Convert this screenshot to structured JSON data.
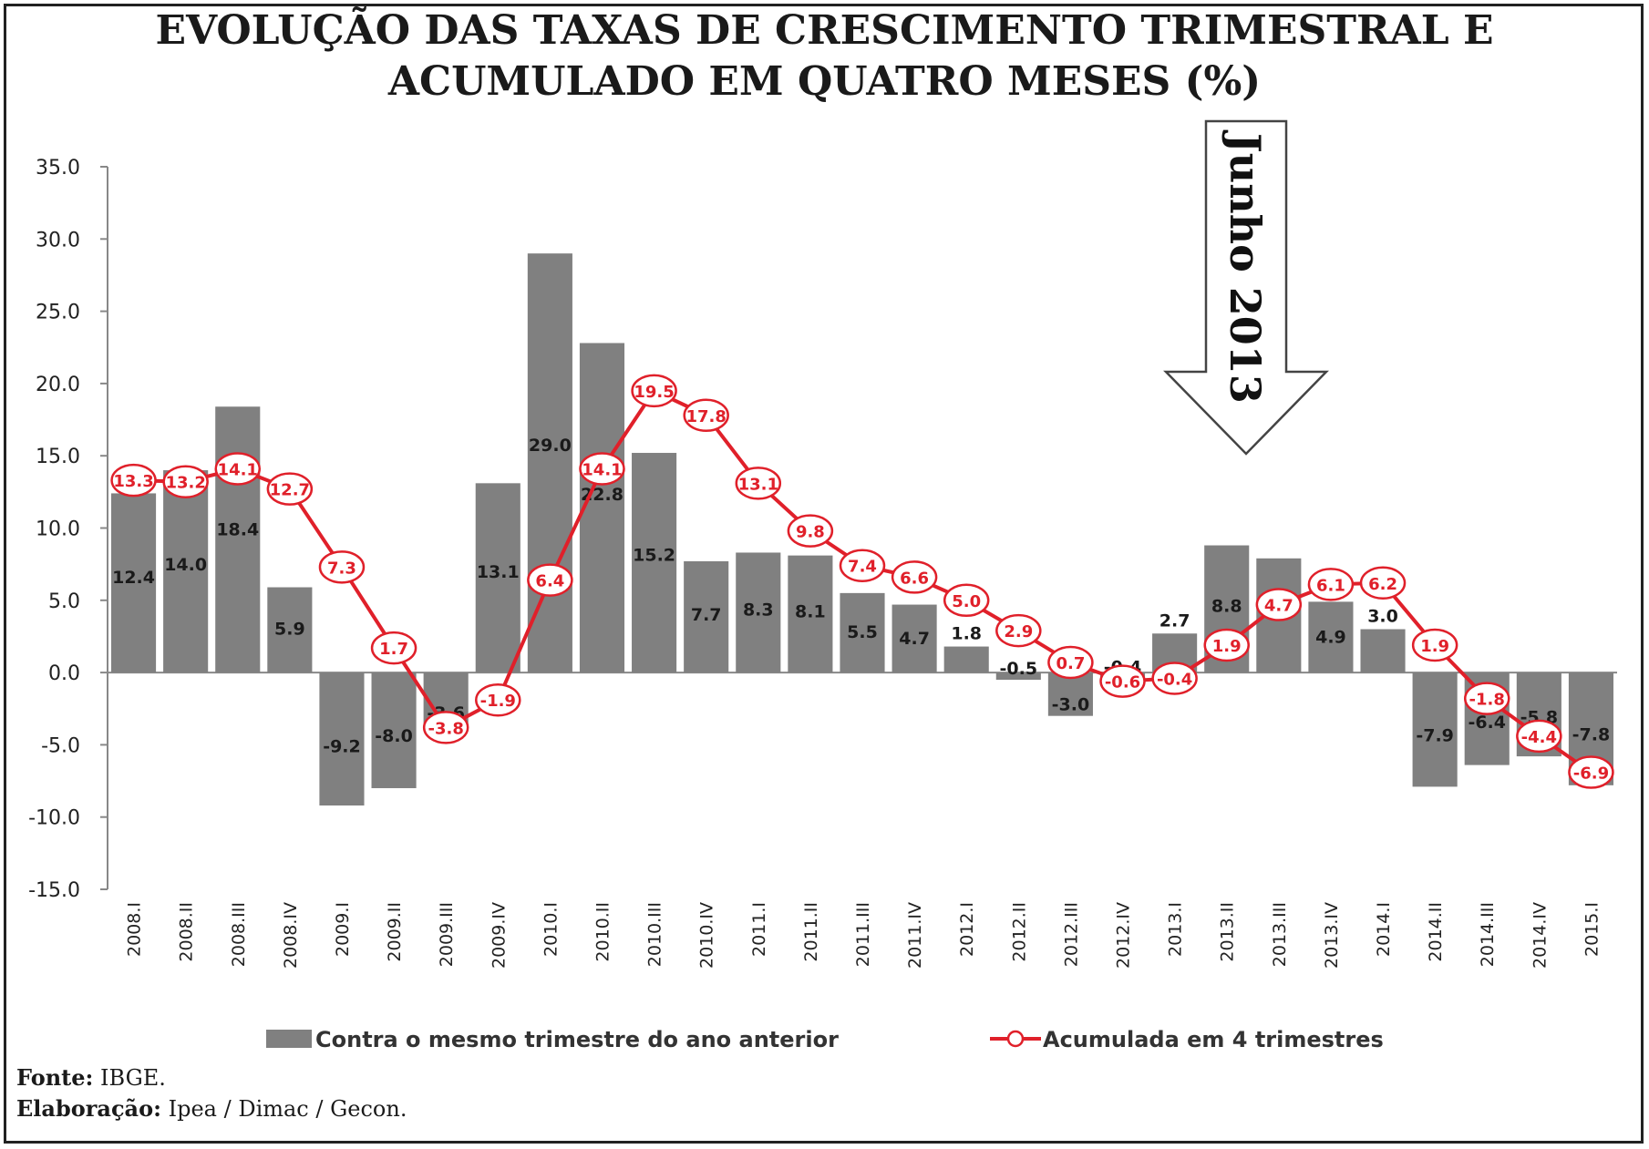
{
  "title_line1": "EVOLUÇÃO DAS TAXAS DE CRESCIMENTO TRIMESTRAL E",
  "title_line2": "ACUMULADO EM QUATRO MESES (%)",
  "annotation": "Junho 2013",
  "source": {
    "fonte_label": "Fonte:",
    "fonte_value": "IBGE.",
    "elab_label": "Elaboração:",
    "elab_value": "Ipea / Dimac / Gecon."
  },
  "colors": {
    "bar": "#808080",
    "line": "#e0202a",
    "marker_fill": "#ffffff"
  },
  "chart_data": {
    "type": "bar",
    "title": "EVOLUÇÃO DAS TAXAS DE CRESCIMENTO TRIMESTRAL E ACUMULADO EM QUATRO MESES (%)",
    "xlabel": "",
    "ylabel": "",
    "ylim": [
      -15,
      35
    ],
    "yticks": [
      "35.0",
      "30.0",
      "25.0",
      "20.0",
      "15.0",
      "10.0",
      "5.0",
      "0.0",
      "-5.0",
      "-10.0",
      "-15.0"
    ],
    "categories": [
      "2008.I",
      "2008.II",
      "2008.III",
      "2008.IV",
      "2009.I",
      "2009.II",
      "2009.III",
      "2009.IV",
      "2010.I",
      "2010.II",
      "2010.III",
      "2010.IV",
      "2011.I",
      "2011.II",
      "2011.III",
      "2011.IV",
      "2012.I",
      "2012.II",
      "2012.III",
      "2012.IV",
      "2013.I",
      "2013.II",
      "2013.III",
      "2013.IV",
      "2014.I",
      "2014.II",
      "2014.III",
      "2014.IV",
      "2015.I"
    ],
    "series": [
      {
        "name": "Contra o mesmo trimestre do ano anterior",
        "type": "bar",
        "values": [
          12.4,
          14.0,
          18.4,
          5.9,
          -9.2,
          -8.0,
          -3.6,
          13.1,
          29.0,
          22.8,
          15.2,
          7.7,
          8.3,
          8.1,
          5.5,
          4.7,
          1.8,
          -0.5,
          -3.0,
          -0.4,
          2.7,
          8.8,
          7.9,
          4.9,
          3.0,
          -7.9,
          -6.4,
          -5.8,
          -7.8
        ],
        "labels": [
          "12.4",
          "14.0",
          "18.4",
          "5.9",
          "-9.2",
          "-8.0",
          "-3.6",
          "13.1",
          "29.0",
          "22.8",
          "15.2",
          "7.7",
          "8.3",
          "8.1",
          "5.5",
          "4.7",
          "1.8",
          "-0.5",
          "-3.0",
          "-0.4",
          "2.7",
          "8.8",
          "7.9",
          "4.9",
          "3.0",
          "-7.9",
          "-6.4",
          "-5.8",
          "-7.8"
        ]
      },
      {
        "name": "Acumulada em 4 trimestres",
        "type": "line",
        "values": [
          13.3,
          13.2,
          14.1,
          12.7,
          7.3,
          1.7,
          -3.8,
          -1.9,
          6.4,
          14.1,
          19.5,
          17.8,
          13.1,
          9.8,
          7.4,
          6.6,
          5.0,
          2.9,
          0.7,
          -0.6,
          -0.4,
          1.9,
          4.7,
          6.1,
          6.2,
          1.9,
          -1.8,
          -4.4,
          -6.9
        ],
        "labels": [
          "13.3",
          "13.2",
          "14.1",
          "12.7",
          "7.3",
          "1.7",
          "-3.8",
          "-1.9",
          "6.4",
          "14.1",
          "19.5",
          "17.8",
          "13.1",
          "9.8",
          "7.4",
          "6.6",
          "5.0",
          "2.9",
          "0.7",
          "-0.6",
          "-0.4",
          "1.9",
          "4.7",
          "6.1",
          "6.2",
          "1.9",
          "-1.8",
          "-4.4",
          "-6.9"
        ]
      }
    ],
    "legend": [
      "Contra o mesmo trimestre do ano anterior",
      "Acumulada em 4 trimestres"
    ],
    "legend_position": "bottom"
  }
}
